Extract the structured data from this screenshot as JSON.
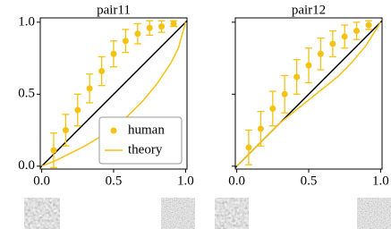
{
  "chart_data": [
    {
      "type": "errorbar",
      "title": "pair11",
      "x": [
        0.083,
        0.167,
        0.25,
        0.333,
        0.417,
        0.5,
        0.583,
        0.667,
        0.75,
        0.833,
        0.917
      ],
      "series": [
        {
          "name": "human",
          "color": "#f5c211",
          "values": [
            0.11,
            0.25,
            0.39,
            0.54,
            0.66,
            0.78,
            0.87,
            0.92,
            0.96,
            0.97,
            0.99
          ],
          "errors": [
            0.12,
            0.11,
            0.11,
            0.1,
            0.1,
            0.09,
            0.08,
            0.07,
            0.05,
            0.04,
            0.02
          ]
        },
        {
          "name": "theory",
          "color": "#f5c211",
          "x": [
            0,
            0.1,
            0.2,
            0.3,
            0.4,
            0.5,
            0.6,
            0.7,
            0.8,
            0.9,
            0.95,
            1
          ],
          "values": [
            0,
            0.04,
            0.09,
            0.14,
            0.2,
            0.27,
            0.35,
            0.45,
            0.57,
            0.72,
            0.82,
            1
          ]
        }
      ],
      "xlim": [
        -0.01,
        1.01
      ],
      "ylim": [
        -0.02,
        1.03
      ],
      "xticks": [
        {
          "value": 0,
          "label": "0.0"
        },
        {
          "value": 0.5,
          "label": "0.5"
        },
        {
          "value": 1,
          "label": "1.0"
        }
      ],
      "yticks": [
        {
          "value": 0,
          "label": "0.0"
        },
        {
          "value": 0.5,
          "label": "0.5"
        },
        {
          "value": 1,
          "label": "1.0"
        }
      ],
      "legend": "lower right"
    },
    {
      "type": "errorbar",
      "title": "pair12",
      "x": [
        0.083,
        0.167,
        0.25,
        0.333,
        0.417,
        0.5,
        0.583,
        0.667,
        0.75,
        0.833,
        0.917
      ],
      "series": [
        {
          "color": "#f5c211",
          "values": [
            0.13,
            0.26,
            0.4,
            0.5,
            0.62,
            0.7,
            0.78,
            0.85,
            0.9,
            0.94,
            0.98
          ],
          "errors": [
            0.12,
            0.12,
            0.12,
            0.13,
            0.12,
            0.12,
            0.11,
            0.09,
            0.08,
            0.06,
            0.03
          ]
        },
        {
          "color": "#f5c211",
          "x": [
            0,
            0.1,
            0.2,
            0.3,
            0.4,
            0.5,
            0.6,
            0.7,
            0.8,
            0.9,
            1
          ],
          "values": [
            0,
            0.1,
            0.2,
            0.3,
            0.38,
            0.46,
            0.54,
            0.62,
            0.72,
            0.84,
            1
          ]
        }
      ],
      "xlim": [
        -0.01,
        1.01
      ],
      "ylim": [
        -0.02,
        1.03
      ],
      "xticks": [
        {
          "value": 0,
          "label": "0.0"
        },
        {
          "value": 0.5,
          "label": "0.5"
        },
        {
          "value": 1,
          "label": "1.0"
        }
      ],
      "yticks": [
        0,
        0.5,
        1
      ],
      "ytick_labels": false
    }
  ]
}
